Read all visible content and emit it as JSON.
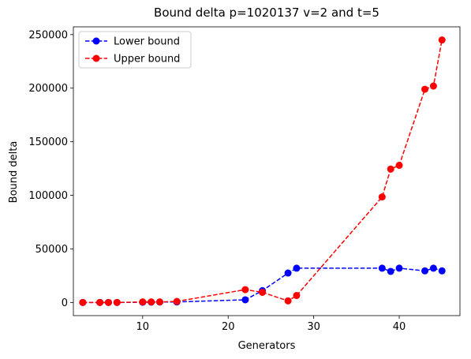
{
  "chart_data": {
    "type": "line",
    "title": "Bound delta p=1020137 v=2 and t=5",
    "xlabel": "Generators",
    "ylabel": "Bound delta",
    "xlim": [
      1.9,
      47.1
    ],
    "ylim": [
      -12250,
      257250
    ],
    "xticks": [
      10,
      20,
      30,
      40
    ],
    "yticks": [
      0,
      50000,
      100000,
      150000,
      200000,
      250000
    ],
    "xtick_labels": [
      "10",
      "20",
      "30",
      "40"
    ],
    "ytick_labels": [
      "0",
      "50000",
      "100000",
      "150000",
      "200000",
      "250000"
    ],
    "grid": false,
    "legend_position": "top-left",
    "series": [
      {
        "name": "Lower bound",
        "color": "#0000ff",
        "linestyle": "dashed",
        "marker": "circle",
        "x": [
          3,
          5,
          6,
          7,
          10,
          11,
          12,
          14,
          22,
          24,
          27,
          28,
          38,
          39,
          40,
          43,
          44,
          45
        ],
        "y": [
          0,
          0,
          0,
          0,
          200,
          300,
          400,
          500,
          2500,
          11000,
          27500,
          32000,
          32000,
          29000,
          32000,
          29500,
          32000,
          29500
        ]
      },
      {
        "name": "Upper bound",
        "color": "#ff0000",
        "linestyle": "dashed",
        "marker": "circle",
        "x": [
          3,
          5,
          6,
          7,
          10,
          11,
          12,
          14,
          22,
          24,
          27,
          28,
          38,
          39,
          40,
          43,
          44,
          45
        ],
        "y": [
          0,
          0,
          0,
          0,
          500,
          500,
          500,
          1000,
          12000,
          9500,
          1500,
          6500,
          98500,
          124500,
          128000,
          199000,
          202000,
          245000
        ]
      }
    ]
  }
}
